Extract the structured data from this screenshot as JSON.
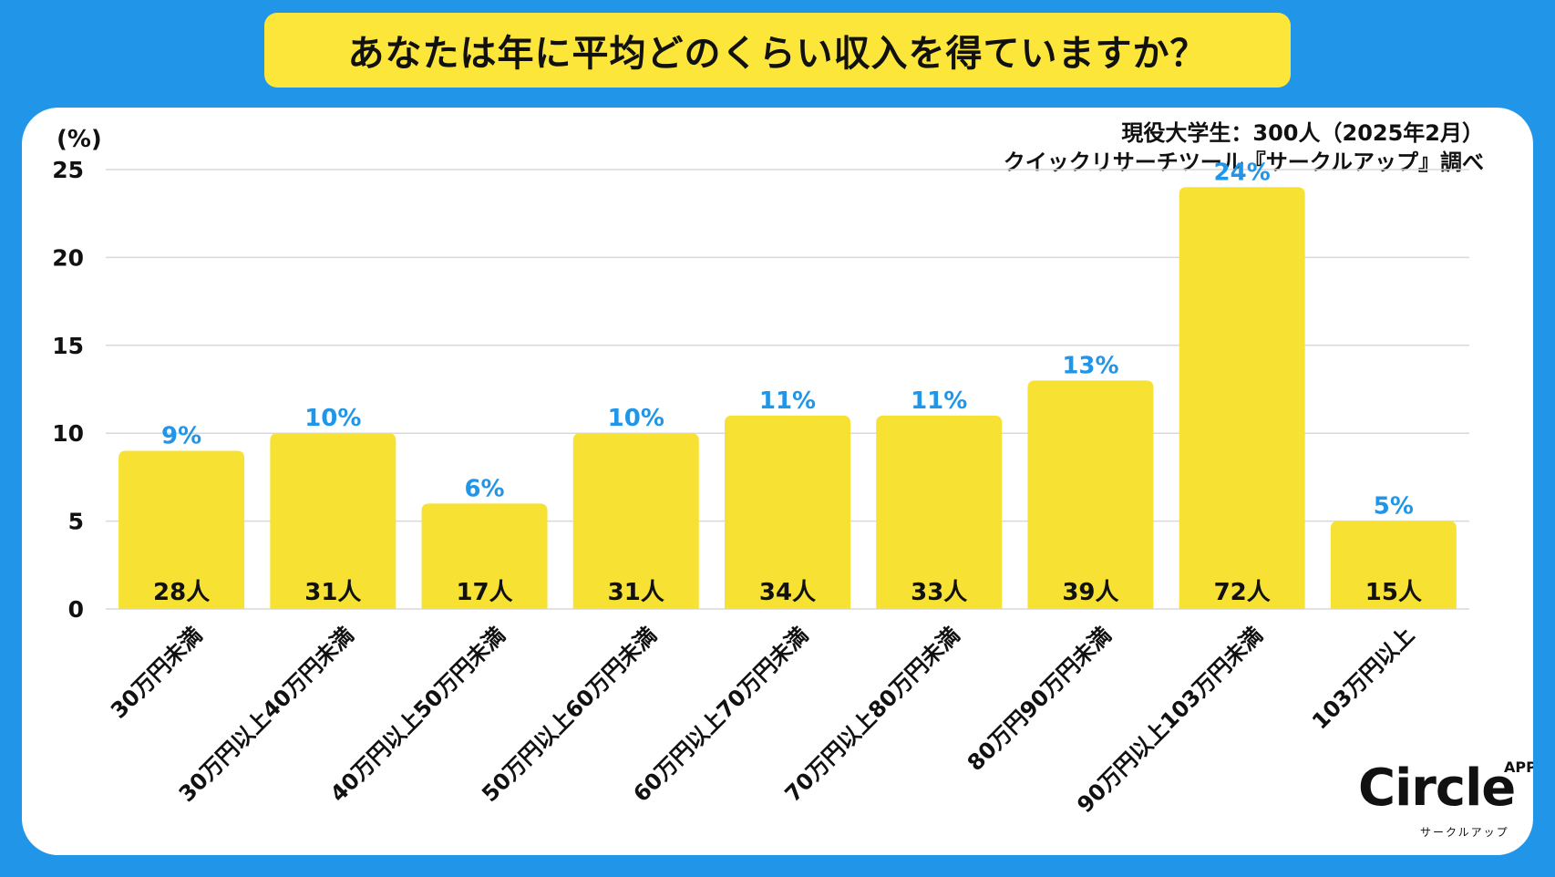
{
  "title": "あなたは年に平均どのくらい収入を得ていますか？",
  "source": {
    "line1": "現役大学生：300人（2025年2月）",
    "line2": "クイックリサーチツール『サークルアップ』調べ"
  },
  "logo": {
    "word": "Circle",
    "app": "APP",
    "kana": "サークルアップ"
  },
  "colors": {
    "background": "#2196e8",
    "bar": "#f7e233",
    "pct_label": "#2196e8",
    "title_bg": "#fde63a"
  },
  "chart_data": {
    "type": "bar",
    "ylabel": "(%)",
    "ylim": [
      0,
      25
    ],
    "yticks": [
      0,
      5,
      10,
      15,
      20,
      25
    ],
    "grid": true,
    "categories": [
      "30万円未満",
      "30万円以上40万円未満",
      "40万円以上50万円未満",
      "50万円以上60万円未満",
      "60万円以上70万円未満",
      "70万円以上80万円未満",
      "80万円90万円未満",
      "90万円以上103万円未満",
      "103万円以上"
    ],
    "values": [
      9,
      10,
      6,
      10,
      11,
      11,
      13,
      24,
      5
    ],
    "value_labels": [
      "9%",
      "10%",
      "6%",
      "10%",
      "11%",
      "11%",
      "13%",
      "24%",
      "5%"
    ],
    "counts": [
      "28人",
      "31人",
      "17人",
      "31人",
      "34人",
      "33人",
      "39人",
      "72人",
      "15人"
    ]
  }
}
